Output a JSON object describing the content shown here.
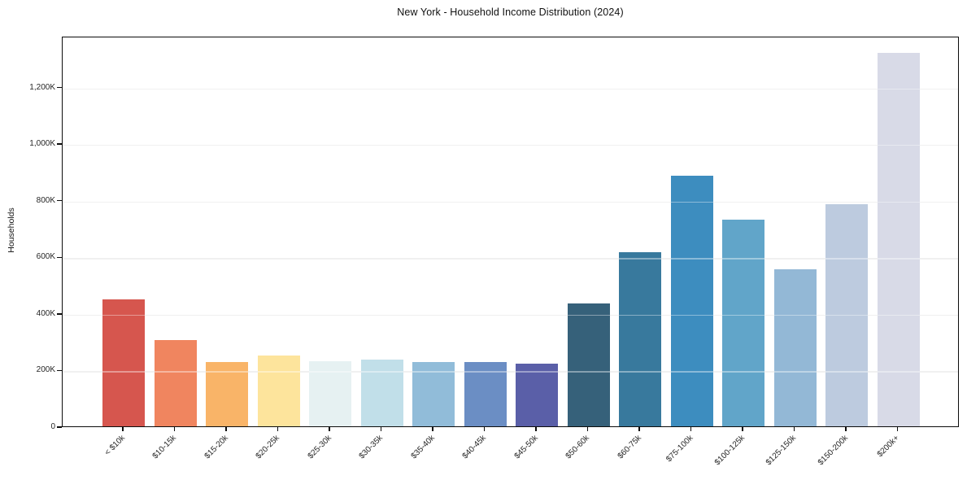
{
  "chart_data": {
    "type": "bar",
    "title": "New York - Household Income Distribution (2024)",
    "xlabel": "",
    "ylabel": "Households",
    "categories": [
      "< $10k",
      "$10-15k",
      "$15-20k",
      "$20-25k",
      "$25-30k",
      "$30-35k",
      "$35-40k",
      "$40-45k",
      "$45-50k",
      "$50-60k",
      "$60-75k",
      "$75-100k",
      "$100-125k",
      "$125-150k",
      "$150-200k",
      "$200k+"
    ],
    "values": [
      448,
      304,
      228,
      249,
      231,
      237,
      226,
      228,
      220,
      434,
      616,
      885,
      729,
      555,
      784,
      1320
    ],
    "value_unit": "K",
    "bar_colors": [
      "#d6564e",
      "#f0855f",
      "#f9b468",
      "#fde49c",
      "#e6f1f2",
      "#c1dfe9",
      "#91bcd9",
      "#6b8ec4",
      "#5a5fa8",
      "#36617a",
      "#38799d",
      "#3d8dbf",
      "#61a5c9",
      "#93b8d6",
      "#bdcbdf",
      "#d8dae7"
    ],
    "ylim": [
      0,
      1380
    ],
    "ytick_values": [
      0,
      200,
      400,
      600,
      800,
      1000,
      1200
    ],
    "ytick_labels": [
      "0",
      "200K",
      "400K",
      "600K",
      "800K",
      "1,000K",
      "1,200K"
    ],
    "grid": "horizontal",
    "gridline_color": "#e7e7e7",
    "legend_position": "none",
    "background_color": "#ffffff",
    "frame": "full-box-black-spines",
    "x_tick_label_rotation_deg": 45
  }
}
